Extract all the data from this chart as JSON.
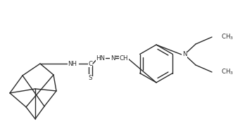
{
  "figsize": [
    3.31,
    1.83
  ],
  "dpi": 100,
  "line_color": "#2a2a2a",
  "line_width": 1.0,
  "font_size": 6.2,
  "xlim": [
    0,
    331
  ],
  "ylim": [
    0,
    183
  ]
}
